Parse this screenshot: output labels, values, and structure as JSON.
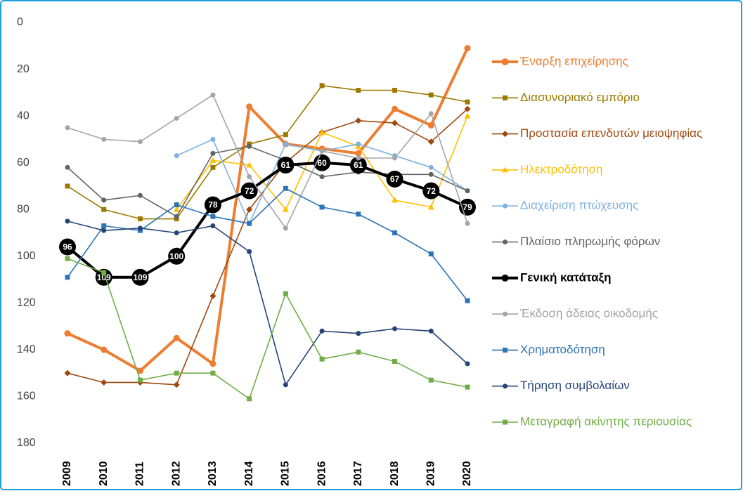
{
  "chart_data": {
    "type": "line",
    "categories": [
      "2009",
      "2010",
      "2011",
      "2012",
      "2013",
      "2014",
      "2015",
      "2016",
      "2017",
      "2018",
      "2019",
      "2020"
    ],
    "ylim": [
      0,
      180
    ],
    "yticks": [
      0,
      20,
      40,
      60,
      80,
      100,
      120,
      140,
      160,
      180
    ],
    "y_inverted": true,
    "grid": false,
    "legend": "right",
    "series": [
      {
        "name": "Έναρξη επιχείρησης",
        "color": "#ED7D31",
        "marker": "circle",
        "line_style": "bold",
        "values": [
          133,
          140,
          149,
          135,
          146,
          36,
          52,
          54,
          56,
          37,
          44,
          11
        ]
      },
      {
        "name": "Διασυνοριακό εμπόριο",
        "color": "#9C7A00",
        "marker": "square",
        "values": [
          70,
          80,
          84,
          84,
          62,
          52,
          48,
          27,
          29,
          29,
          31,
          34
        ]
      },
      {
        "name": "Προστασία επενδυτών μειοψηφίας",
        "color": "#9E480E",
        "marker": "diamond",
        "values": [
          150,
          154,
          154,
          155,
          117,
          80,
          60,
          47,
          42,
          43,
          51,
          37
        ]
      },
      {
        "name": "Ηλεκτροδότηση",
        "color": "#FFC000",
        "marker": "triangle",
        "values": [
          null,
          null,
          null,
          80,
          59,
          61,
          80,
          47,
          53,
          76,
          79,
          40
        ]
      },
      {
        "name": "Διαχείριση πτώχευσης",
        "color": "#7FB2E0",
        "marker": "circle",
        "values": [
          null,
          null,
          null,
          57,
          50,
          86,
          52,
          55,
          52,
          57,
          62,
          72
        ]
      },
      {
        "name": "Πλαίσιο πληρωμής φόρων",
        "color": "#636363",
        "marker": "circle",
        "values": [
          62,
          76,
          74,
          83,
          56,
          53,
          59,
          66,
          64,
          65,
          65,
          72
        ]
      },
      {
        "name": "Γενική κατάταξη",
        "color": "#000000",
        "marker": "circle",
        "line_style": "bold",
        "data_labels": true,
        "values": [
          96,
          109,
          109,
          100,
          78,
          72,
          61,
          60,
          61,
          67,
          72,
          79
        ]
      },
      {
        "name": "Έκδοση άδειας οικοδομής",
        "color": "#A5A5A5",
        "marker": "circle",
        "values": [
          45,
          50,
          51,
          41,
          31,
          66,
          88,
          55,
          58,
          58,
          39,
          86
        ]
      },
      {
        "name": "Χρηματοδότηση",
        "color": "#2E75B6",
        "marker": "square",
        "values": [
          109,
          87,
          89,
          78,
          83,
          86,
          71,
          79,
          82,
          90,
          99,
          119
        ]
      },
      {
        "name": "Τήρηση συμβολαίων",
        "color": "#264478",
        "marker": "circle",
        "values": [
          85,
          89,
          88,
          90,
          87,
          98,
          155,
          132,
          133,
          131,
          132,
          146
        ]
      },
      {
        "name": "Μεταγραφή ακίνητης περιουσίας",
        "color": "#70AD47",
        "marker": "square",
        "values": [
          101,
          107,
          153,
          150,
          150,
          161,
          116,
          144,
          141,
          145,
          153,
          156
        ]
      }
    ]
  }
}
